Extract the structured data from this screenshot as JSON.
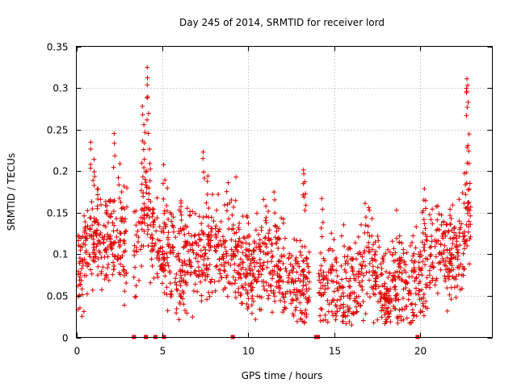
{
  "chart_data": {
    "type": "scatter",
    "title": "Day 245 of 2014, SRMTID for receiver lord",
    "xlabel": "GPS time / hours",
    "ylabel": "SRMTID / TECUs",
    "xlim": [
      0,
      24.2
    ],
    "ylim": [
      0,
      0.35
    ],
    "xticks": [
      0,
      5,
      10,
      15,
      20
    ],
    "xtick_labels": [
      "0",
      "5",
      "10",
      "15",
      "20"
    ],
    "yticks": [
      0,
      0.05,
      0.1,
      0.15,
      0.2,
      0.25,
      0.3,
      0.35
    ],
    "ytick_labels": [
      "0",
      "0.05",
      "0.1",
      "0.15",
      "0.2",
      "0.25",
      "0.3",
      "0.35"
    ],
    "grid": true,
    "marker": "plus",
    "color": "#e00000",
    "gap_markers_x": [
      3.35,
      4.05,
      4.6,
      5.1,
      9.1,
      13.95,
      14.05,
      19.85
    ],
    "trend": [
      [
        0.0,
        0.08
      ],
      [
        0.5,
        0.1
      ],
      [
        1.0,
        0.13
      ],
      [
        1.5,
        0.12
      ],
      [
        2.0,
        0.12
      ],
      [
        2.5,
        0.11
      ],
      [
        2.95,
        0.12
      ],
      [
        3.4,
        0.1
      ],
      [
        3.7,
        0.12
      ],
      [
        4.0,
        0.17
      ],
      [
        4.3,
        0.14
      ],
      [
        4.6,
        0.11
      ],
      [
        5.0,
        0.1
      ],
      [
        5.5,
        0.11
      ],
      [
        6.0,
        0.08
      ],
      [
        6.5,
        0.09
      ],
      [
        7.0,
        0.1
      ],
      [
        7.5,
        0.1
      ],
      [
        8.0,
        0.11
      ],
      [
        8.5,
        0.1
      ],
      [
        9.0,
        0.1
      ],
      [
        9.5,
        0.09
      ],
      [
        10.0,
        0.08
      ],
      [
        10.5,
        0.08
      ],
      [
        11.0,
        0.1
      ],
      [
        11.5,
        0.08
      ],
      [
        12.0,
        0.07
      ],
      [
        12.5,
        0.065
      ],
      [
        13.0,
        0.065
      ],
      [
        13.5,
        0.06
      ],
      [
        14.5,
        0.07
      ],
      [
        15.0,
        0.06
      ],
      [
        15.5,
        0.055
      ],
      [
        16.0,
        0.055
      ],
      [
        16.5,
        0.06
      ],
      [
        17.0,
        0.09
      ],
      [
        17.5,
        0.075
      ],
      [
        18.0,
        0.06
      ],
      [
        18.5,
        0.065
      ],
      [
        19.0,
        0.065
      ],
      [
        19.5,
        0.065
      ],
      [
        20.0,
        0.075
      ],
      [
        20.5,
        0.09
      ],
      [
        21.0,
        0.11
      ],
      [
        21.5,
        0.1
      ],
      [
        22.0,
        0.1
      ],
      [
        22.5,
        0.11
      ],
      [
        22.9,
        0.16
      ]
    ],
    "peaks": [
      [
        0.8,
        0.24
      ],
      [
        1.0,
        0.22
      ],
      [
        2.2,
        0.25
      ],
      [
        2.5,
        0.21
      ],
      [
        3.9,
        0.28
      ],
      [
        4.1,
        0.33
      ],
      [
        4.15,
        0.29
      ],
      [
        3.95,
        0.25
      ],
      [
        4.3,
        0.23
      ],
      [
        5.1,
        0.21
      ],
      [
        5.3,
        0.18
      ],
      [
        7.4,
        0.23
      ],
      [
        7.6,
        0.2
      ],
      [
        8.8,
        0.19
      ],
      [
        13.2,
        0.21
      ],
      [
        13.3,
        0.19
      ],
      [
        14.3,
        0.17
      ],
      [
        16.8,
        0.165
      ],
      [
        17.0,
        0.165
      ],
      [
        20.3,
        0.18
      ],
      [
        22.7,
        0.32
      ],
      [
        22.75,
        0.31
      ],
      [
        22.8,
        0.25
      ],
      [
        22.7,
        0.23
      ],
      [
        22.6,
        0.2
      ],
      [
        20.2,
        0.17
      ],
      [
        21.8,
        0.16
      ],
      [
        10.0,
        0.15
      ],
      [
        11.5,
        0.18
      ],
      [
        12.1,
        0.15
      ],
      [
        1.2,
        0.18
      ],
      [
        6.1,
        0.17
      ]
    ],
    "gaps": [
      [
        2.95,
        3.35
      ],
      [
        13.55,
        14.1
      ],
      [
        19.8,
        19.9
      ]
    ],
    "points_per_hour": 80,
    "spread": 0.028
  }
}
